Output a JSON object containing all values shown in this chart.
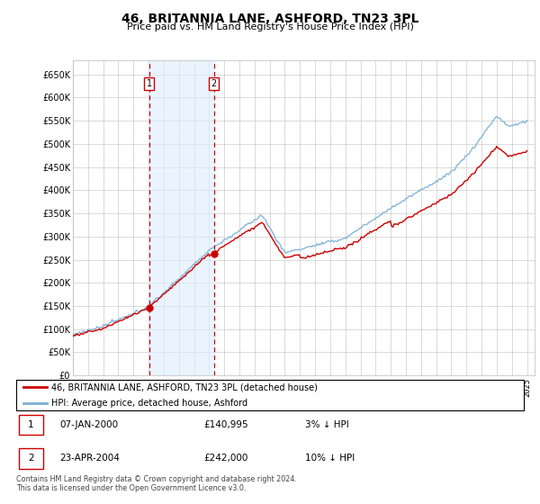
{
  "title": "46, BRITANNIA LANE, ASHFORD, TN23 3PL",
  "subtitle": "Price paid vs. HM Land Registry's House Price Index (HPI)",
  "ylim": [
    0,
    680000
  ],
  "xlim_start": 1995.0,
  "xlim_end": 2025.5,
  "legend_line1": "46, BRITANNIA LANE, ASHFORD, TN23 3PL (detached house)",
  "legend_line2": "HPI: Average price, detached house, Ashford",
  "sale1_label": "1",
  "sale1_date": "07-JAN-2000",
  "sale1_price": "£140,995",
  "sale1_hpi": "3% ↓ HPI",
  "sale2_label": "2",
  "sale2_date": "23-APR-2004",
  "sale2_price": "£242,000",
  "sale2_hpi": "10% ↓ HPI",
  "footer": "Contains HM Land Registry data © Crown copyright and database right 2024.\nThis data is licensed under the Open Government Licence v3.0.",
  "sale1_year": 2000.03,
  "sale2_year": 2004.31,
  "hpi_color": "#7bafd4",
  "price_color": "#cc0000",
  "vline_color": "#cc0000",
  "shade_color": "#ddeeff",
  "grid_color": "#cccccc",
  "ytick_vals": [
    0,
    50000,
    100000,
    150000,
    200000,
    250000,
    300000,
    350000,
    400000,
    450000,
    500000,
    550000,
    600000,
    650000
  ],
  "ytick_labels": [
    "£0",
    "£50K",
    "£100K",
    "£150K",
    "£200K",
    "£250K",
    "£300K",
    "£350K",
    "£400K",
    "£450K",
    "£500K",
    "£550K",
    "£600K",
    "£650K"
  ]
}
